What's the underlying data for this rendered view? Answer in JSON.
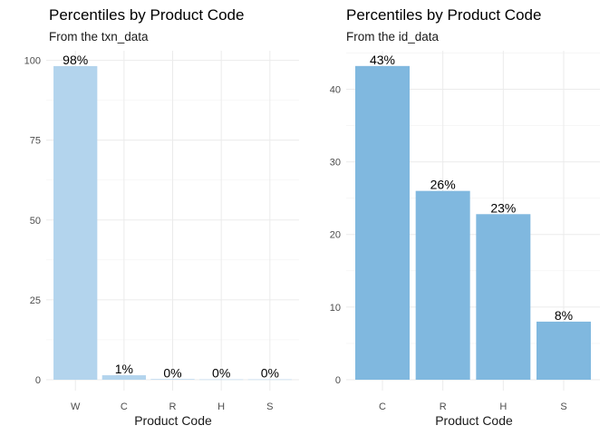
{
  "chart_data": [
    {
      "type": "bar",
      "title": "Percentiles by Product Code",
      "subtitle": "From the txn_data",
      "xlabel": "Product Code",
      "ylabel": "",
      "categories": [
        "W",
        "C",
        "R",
        "H",
        "S"
      ],
      "values": [
        98.2,
        1.4,
        0.2,
        0.1,
        0.1
      ],
      "data_labels": [
        "98%",
        "1%",
        "0%",
        "0%",
        "0%"
      ],
      "yticks": [
        0,
        25,
        50,
        75,
        100
      ],
      "ylim": [
        0,
        103
      ],
      "bar_color": "#b3d4ed",
      "grid": true
    },
    {
      "type": "bar",
      "title": "Percentiles by Product Code",
      "subtitle": "From the id_data",
      "xlabel": "Product Code",
      "ylabel": "",
      "categories": [
        "C",
        "R",
        "H",
        "S"
      ],
      "values": [
        43.2,
        26.0,
        22.8,
        8.0
      ],
      "data_labels": [
        "43%",
        "26%",
        "23%",
        "8%"
      ],
      "yticks": [
        0,
        10,
        20,
        30,
        40
      ],
      "ylim": [
        0,
        45.3
      ],
      "bar_color": "#80b8df",
      "grid": true
    }
  ]
}
